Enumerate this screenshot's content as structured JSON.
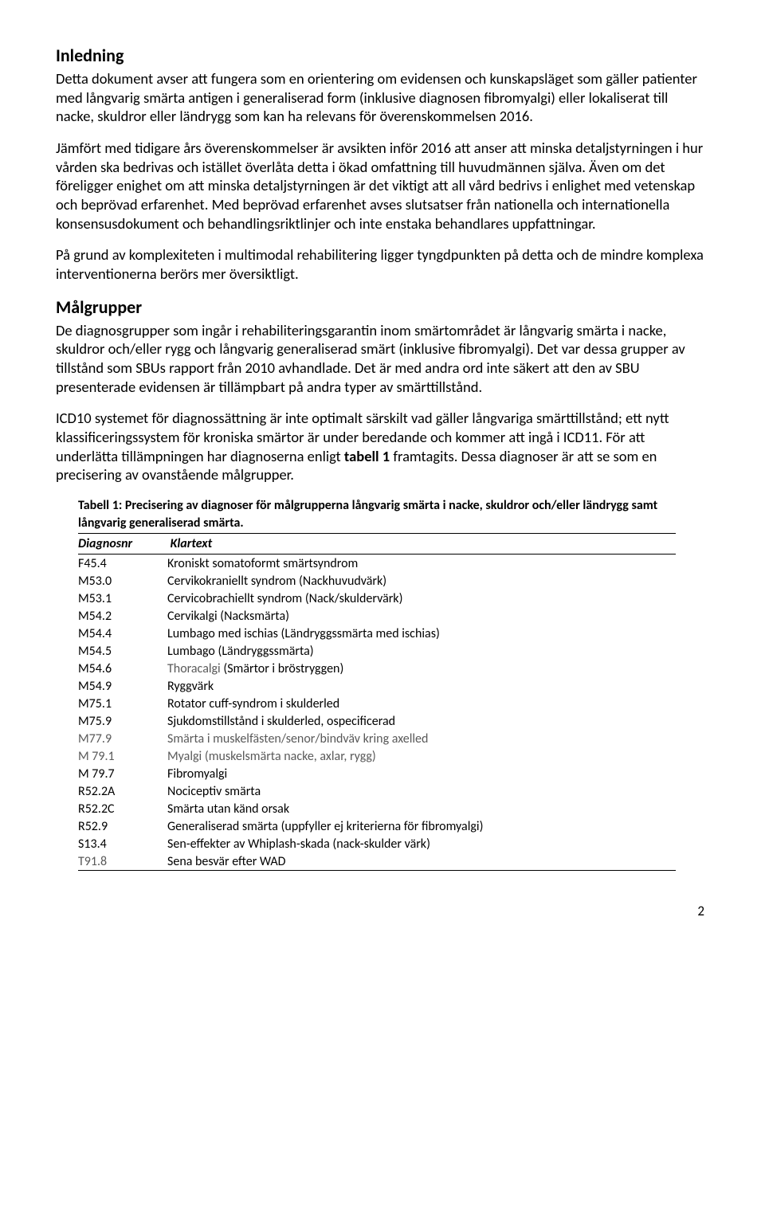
{
  "section1": {
    "heading": "Inledning",
    "p1": "Detta dokument avser att fungera som en orientering om evidensen och kunskapsläget som gäller patienter med långvarig smärta antigen i generaliserad form (inklusive diagnosen fibromyalgi) eller lokaliserat till nacke, skuldror eller ländrygg som kan ha relevans för överenskommelsen 2016.",
    "p2": "Jämfört med tidigare års överenskommelser är avsikten inför 2016 att anser att minska detaljstyrningen i hur vården ska bedrivas och istället överlåta detta i ökad omfattning till huvudmännen själva. Även om det föreligger enighet om att minska detaljstyrningen är det viktigt att all vård bedrivs i enlighet med vetenskap och beprövad erfarenhet. Med beprövad erfarenhet avses slutsatser från nationella och internationella konsensusdokument och behandlingsriktlinjer och inte enstaka behandlares uppfattningar.",
    "p3": "På grund av komplexiteten i multimodal rehabilitering ligger tyngdpunkten på detta och de mindre komplexa interventionerna berörs mer översiktligt."
  },
  "section2": {
    "heading": "Målgrupper",
    "p1_part1": "De diagnosgrupper som ingår i rehabiliteringsgarantin inom smärtområdet är långvarig smärta i nacke, skuldror och/eller rygg och långvarig generaliserad smärt (inklusive fibromyalgi). Det var dessa grupper av tillstånd som SBUs rapport från 2010 avhandlade. Det är med andra ord inte säkert att den av SBU presenterade evidensen är tillämpbart på andra typer av smärttillstånd.",
    "p2_part1": "ICD10 systemet för diagnossättning är inte optimalt särskilt vad gäller långvariga smärttillstånd; ett nytt klassificeringssystem för kroniska smärtor är under beredande och kommer att ingå i ICD11. För att underlätta tillämpningen har diagnoserna enligt ",
    "p2_bold": "tabell 1",
    "p2_part2": " framtagits. Dessa diagnoser är att se som en precisering av ovanstående målgrupper."
  },
  "table": {
    "caption": "Tabell 1: Precisering av diagnoser för målgrupperna långvarig smärta i nacke, skuldror och/eller ländrygg samt långvarig generaliserad smärta.",
    "col1": "Diagnosnr",
    "col2": "Klartext",
    "rows": [
      {
        "code": "F45.4",
        "text": "Kroniskt somatoformt smärtsyndrom",
        "grey_code": false,
        "grey_text": false
      },
      {
        "code": "M53.0",
        "text": "Cervikokraniellt syndrom (Nackhuvudvärk)",
        "grey_code": false,
        "grey_text": false
      },
      {
        "code": "M53.1",
        "text": "Cervicobrachiellt syndrom (Nack/skuldervärk)",
        "grey_code": false,
        "grey_text": false
      },
      {
        "code": "M54.2",
        "text": "Cervikalgi (Nacksmärta)",
        "grey_code": false,
        "grey_text": false
      },
      {
        "code": "M54.4",
        "text": "Lumbago med ischias (Ländryggssmärta med ischias)",
        "grey_code": false,
        "grey_text": false
      },
      {
        "code": "M54.5",
        "text": "Lumbago (Ländryggssmärta)",
        "grey_code": false,
        "grey_text": false
      },
      {
        "code": "M54.6",
        "text": "Thoracalgi (Smärtor i bröstryggen)",
        "grey_code": false,
        "grey_text": true,
        "grey_prefix": "Thoracalgi",
        "suffix": " (Smärtor i bröstryggen)"
      },
      {
        "code": "M54.9",
        "text": "Ryggvärk",
        "grey_code": false,
        "grey_text": false
      },
      {
        "code": "M75.1",
        "text": "Rotator cuff-syndrom i skulderled",
        "grey_code": false,
        "grey_text": false
      },
      {
        "code": "M75.9",
        "text": "Sjukdomstillstånd i skulderled, ospecificerad",
        "grey_code": false,
        "grey_text": false
      },
      {
        "code": "M77.9",
        "text": "Smärta i muskelfästen/senor/bindväv kring axelled",
        "grey_code": true,
        "grey_text": true
      },
      {
        "code": "M 79.1",
        "text": "Myalgi (muskelsmärta nacke, axlar, rygg)",
        "grey_code": true,
        "grey_text": true
      },
      {
        "code": "M 79.7",
        "text": "Fibromyalgi",
        "grey_code": false,
        "grey_text": false
      },
      {
        "code": "R52.2A",
        "text": "Nociceptiv smärta",
        "grey_code": false,
        "grey_text": false
      },
      {
        "code": "R52.2C",
        "text": "Smärta utan känd orsak",
        "grey_code": false,
        "grey_text": false
      },
      {
        "code": "R52.9",
        "text": "Generaliserad smärta (uppfyller ej kriterierna för fibromyalgi)",
        "grey_code": false,
        "grey_text": false
      },
      {
        "code": "S13.4",
        "text": "Sen-effekter av Whiplash-skada (nack-skulder värk)",
        "grey_code": false,
        "grey_text": false
      },
      {
        "code": "T91.8",
        "text": "Sena besvär efter WAD",
        "grey_code": true,
        "grey_text": false
      }
    ]
  },
  "page_number": "2"
}
